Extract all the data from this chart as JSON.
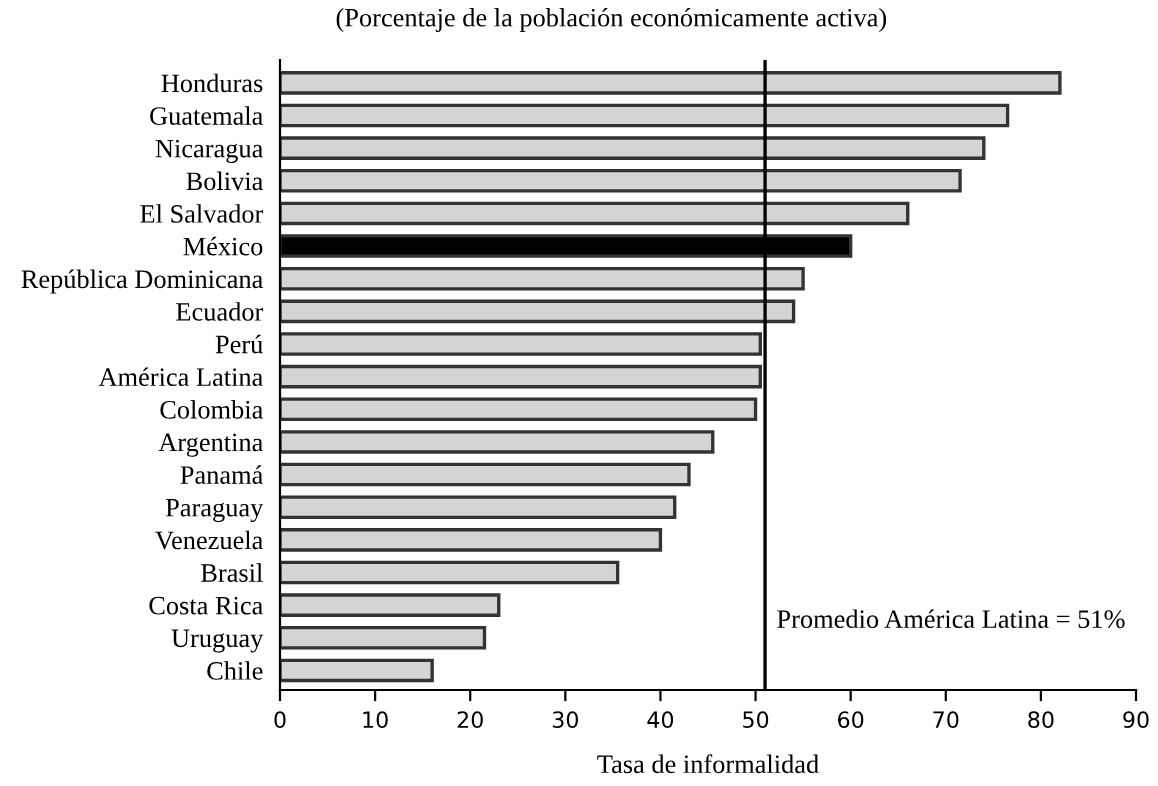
{
  "chart_data": {
    "type": "bar",
    "orientation": "horizontal",
    "title": "(Porcentaje de la población económicamente activa)",
    "xlabel": "Tasa de informalidad",
    "categories": [
      "Honduras",
      "Guatemala",
      "Nicaragua",
      "Bolivia",
      "El Salvador",
      "México",
      "República Dominicana",
      "Ecuador",
      "Perú",
      "América Latina",
      "Colombia",
      "Argentina",
      "Panamá",
      "Paraguay",
      "Venezuela",
      "Brasil",
      "Costa Rica",
      "Uruguay",
      "Chile"
    ],
    "values": [
      82,
      76.5,
      74,
      71.5,
      66,
      60,
      55,
      54,
      50.5,
      50.5,
      50,
      45.5,
      43,
      41.5,
      40,
      35.5,
      23,
      21.5,
      16
    ],
    "colors": [
      "#d4d4d4",
      "#d4d4d4",
      "#d4d4d4",
      "#d4d4d4",
      "#d4d4d4",
      "#000000",
      "#d4d4d4",
      "#d4d4d4",
      "#d4d4d4",
      "#d4d4d4",
      "#d4d4d4",
      "#d4d4d4",
      "#d4d4d4",
      "#d4d4d4",
      "#d4d4d4",
      "#d4d4d4",
      "#d4d4d4",
      "#d4d4d4",
      "#d4d4d4"
    ],
    "xlim": [
      0,
      90
    ],
    "xticks": [
      0,
      10,
      20,
      30,
      40,
      50,
      60,
      70,
      80,
      90
    ],
    "grid": false,
    "legend": false,
    "ref_lines": [
      {
        "axis": "x",
        "value": 51,
        "label": "Promedio América Latina = 51%",
        "color": "#000000"
      }
    ]
  }
}
